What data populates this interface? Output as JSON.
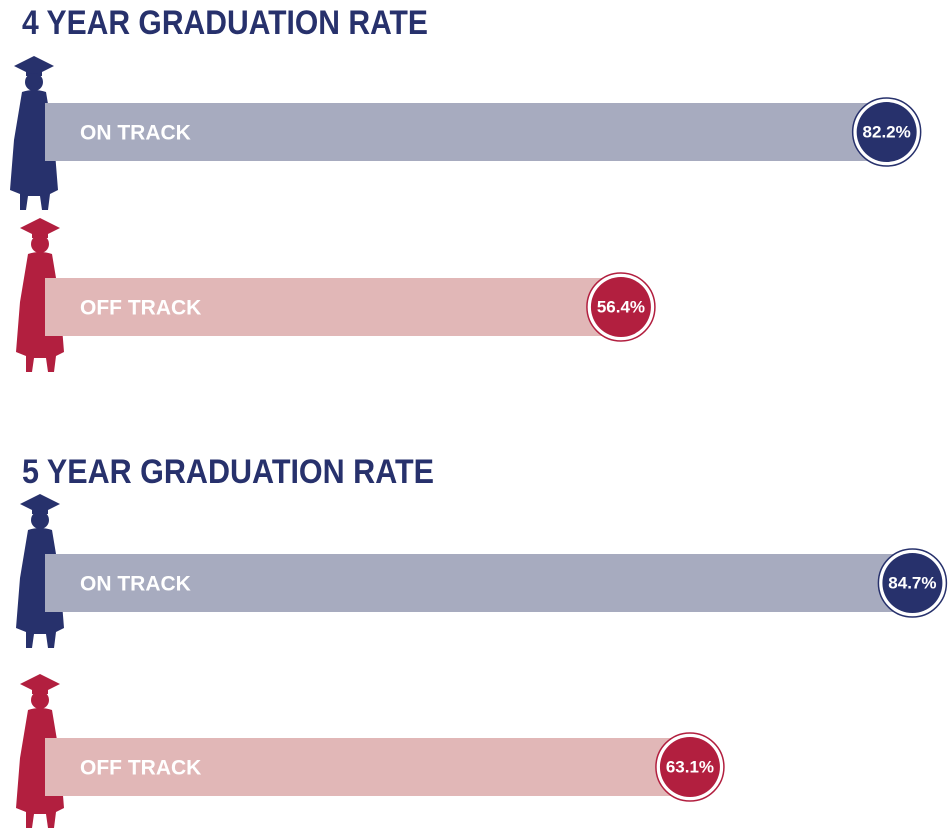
{
  "chart_data": [
    {
      "type": "bar",
      "title": "4 YEAR GRADUATION RATE",
      "categories": [
        "ON TRACK",
        "OFF TRACK"
      ],
      "values": [
        82.2,
        56.4
      ],
      "value_labels": [
        "82.2%",
        "56.4%"
      ],
      "colors": [
        "#a7abbf",
        "#e1b7b7"
      ],
      "label_colors": [
        "#27316c",
        "#b21f3f"
      ],
      "xlim": [
        0,
        100
      ]
    },
    {
      "type": "bar",
      "title": "5 YEAR GRADUATION RATE",
      "categories": [
        "ON TRACK",
        "OFF TRACK"
      ],
      "values": [
        84.7,
        63.1
      ],
      "value_labels": [
        "84.7%",
        "63.1%"
      ],
      "colors": [
        "#a7abbf",
        "#e1b7b7"
      ],
      "label_colors": [
        "#27316c",
        "#b21f3f"
      ],
      "xlim": [
        0,
        100
      ]
    }
  ]
}
